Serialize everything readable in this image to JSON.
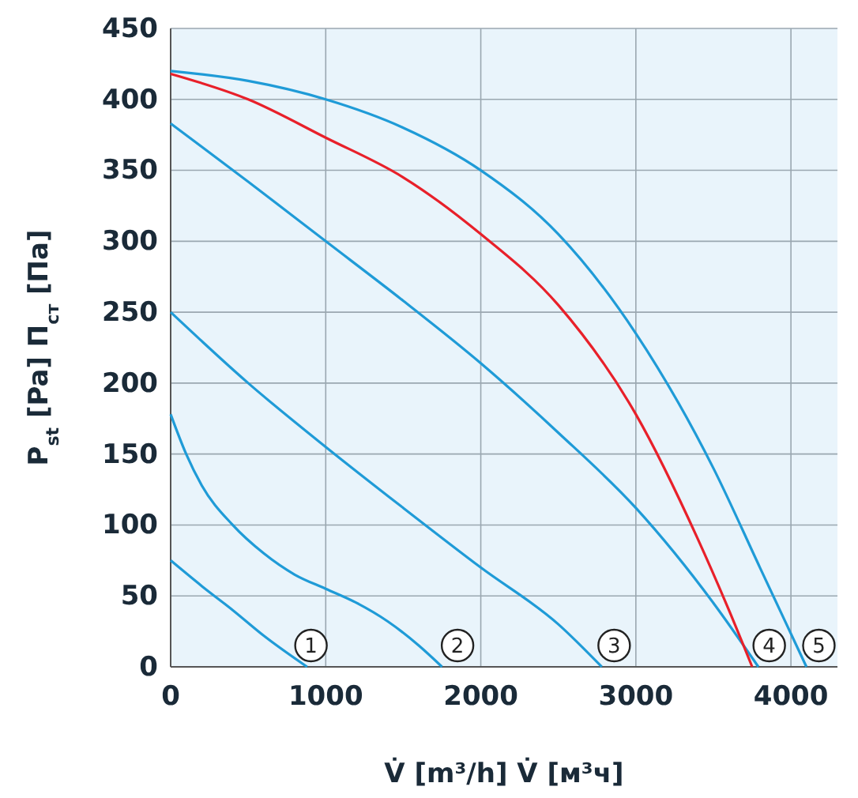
{
  "chart_data": {
    "type": "line",
    "xlabel": "V̇ [m³/h]   V̇ [м³ч]",
    "ylabel": "P$_{st}$ [Pa]   П$_{ст}$ [Па]",
    "xlim": [
      0,
      4300
    ],
    "ylim": [
      0,
      450
    ],
    "xticks": [
      0,
      1000,
      2000,
      3000,
      4000
    ],
    "yticks": [
      0,
      50,
      100,
      150,
      200,
      250,
      300,
      350,
      400,
      450
    ],
    "grid": true,
    "marker": "none",
    "line_style": "solid",
    "series": [
      {
        "color": "#1f9bd7",
        "x": [
          0,
          200,
          400,
          600,
          880
        ],
        "values": [
          75,
          57,
          40,
          22,
          0
        ]
      },
      {
        "color": "#1f9bd7",
        "x": [
          0,
          100,
          200,
          400,
          600,
          800,
          1000,
          1200,
          1400,
          1600,
          1750
        ],
        "values": [
          178,
          150,
          128,
          100,
          80,
          65,
          55,
          45,
          32,
          15,
          0
        ]
      },
      {
        "color": "#1f9bd7",
        "x": [
          0,
          500,
          1000,
          1500,
          2000,
          2500,
          2780
        ],
        "values": [
          250,
          200,
          155,
          112,
          70,
          30,
          0
        ]
      },
      {
        "color": "#1f9bd7",
        "x": [
          0,
          500,
          1000,
          1500,
          2000,
          2500,
          3000,
          3500,
          3790
        ],
        "values": [
          383,
          342,
          300,
          258,
          214,
          165,
          112,
          45,
          0
        ]
      },
      {
        "color": "#1f9bd7",
        "x": [
          0,
          500,
          1000,
          1500,
          2000,
          2500,
          3000,
          3500,
          3800,
          4100
        ],
        "values": [
          420,
          413,
          400,
          380,
          350,
          305,
          235,
          140,
          70,
          0
        ]
      },
      {
        "color": "#e8202a",
        "x": [
          0,
          500,
          1000,
          1500,
          2000,
          2500,
          3000,
          3400,
          3600,
          3750
        ],
        "values": [
          418,
          400,
          373,
          345,
          305,
          255,
          178,
          90,
          40,
          0
        ]
      }
    ],
    "annotations": [
      {
        "text": "1",
        "x": 905,
        "y": 15
      },
      {
        "text": "2",
        "x": 1850,
        "y": 15
      },
      {
        "text": "3",
        "x": 2860,
        "y": 15
      },
      {
        "text": "4",
        "x": 3860,
        "y": 15
      },
      {
        "text": "5",
        "x": 4180,
        "y": 15
      }
    ]
  }
}
